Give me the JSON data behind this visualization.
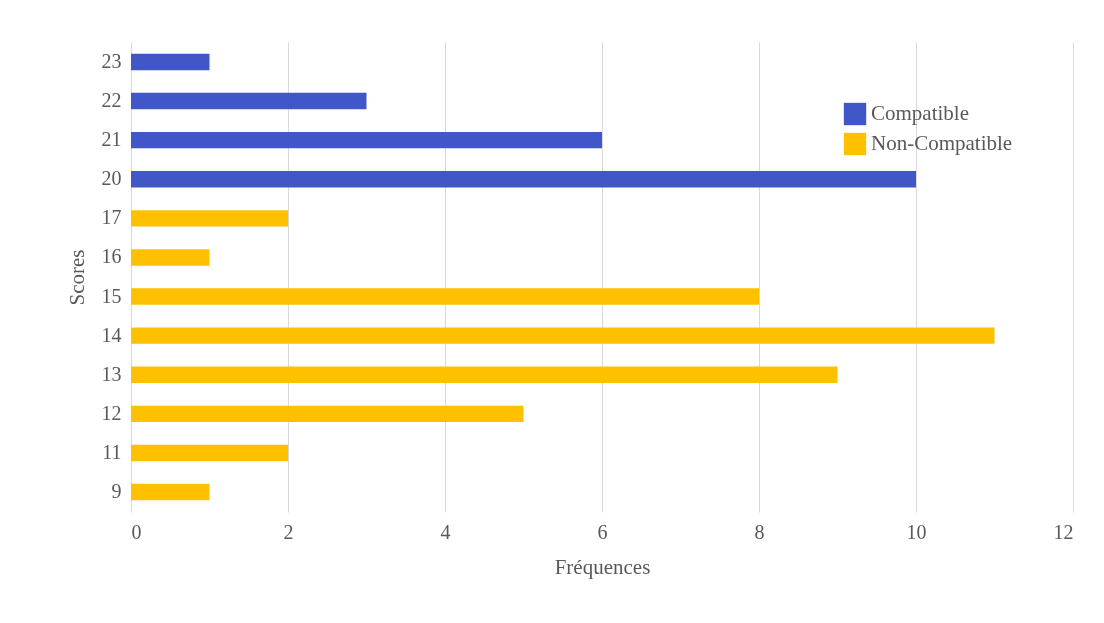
{
  "chart_data": {
    "type": "bar",
    "orientation": "horizontal",
    "xlabel": "Fréquences",
    "ylabel": "Scores",
    "categories": [
      "23",
      "22",
      "21",
      "20",
      "17",
      "16",
      "15",
      "14",
      "13",
      "12",
      "11",
      "9"
    ],
    "series": [
      {
        "name": "Compatible",
        "color": "#4157c8",
        "values": [
          1,
          3,
          6,
          10,
          null,
          null,
          null,
          null,
          null,
          null,
          null,
          null
        ]
      },
      {
        "name": "Non-Compatible",
        "color": "#ffc000",
        "values": [
          null,
          null,
          null,
          null,
          2,
          1,
          8,
          11,
          9,
          5,
          2,
          1
        ]
      }
    ],
    "xlim": [
      0,
      12
    ],
    "xticks": [
      0,
      2,
      4,
      6,
      8,
      10,
      12
    ],
    "grid": "x",
    "legend": "top right"
  }
}
